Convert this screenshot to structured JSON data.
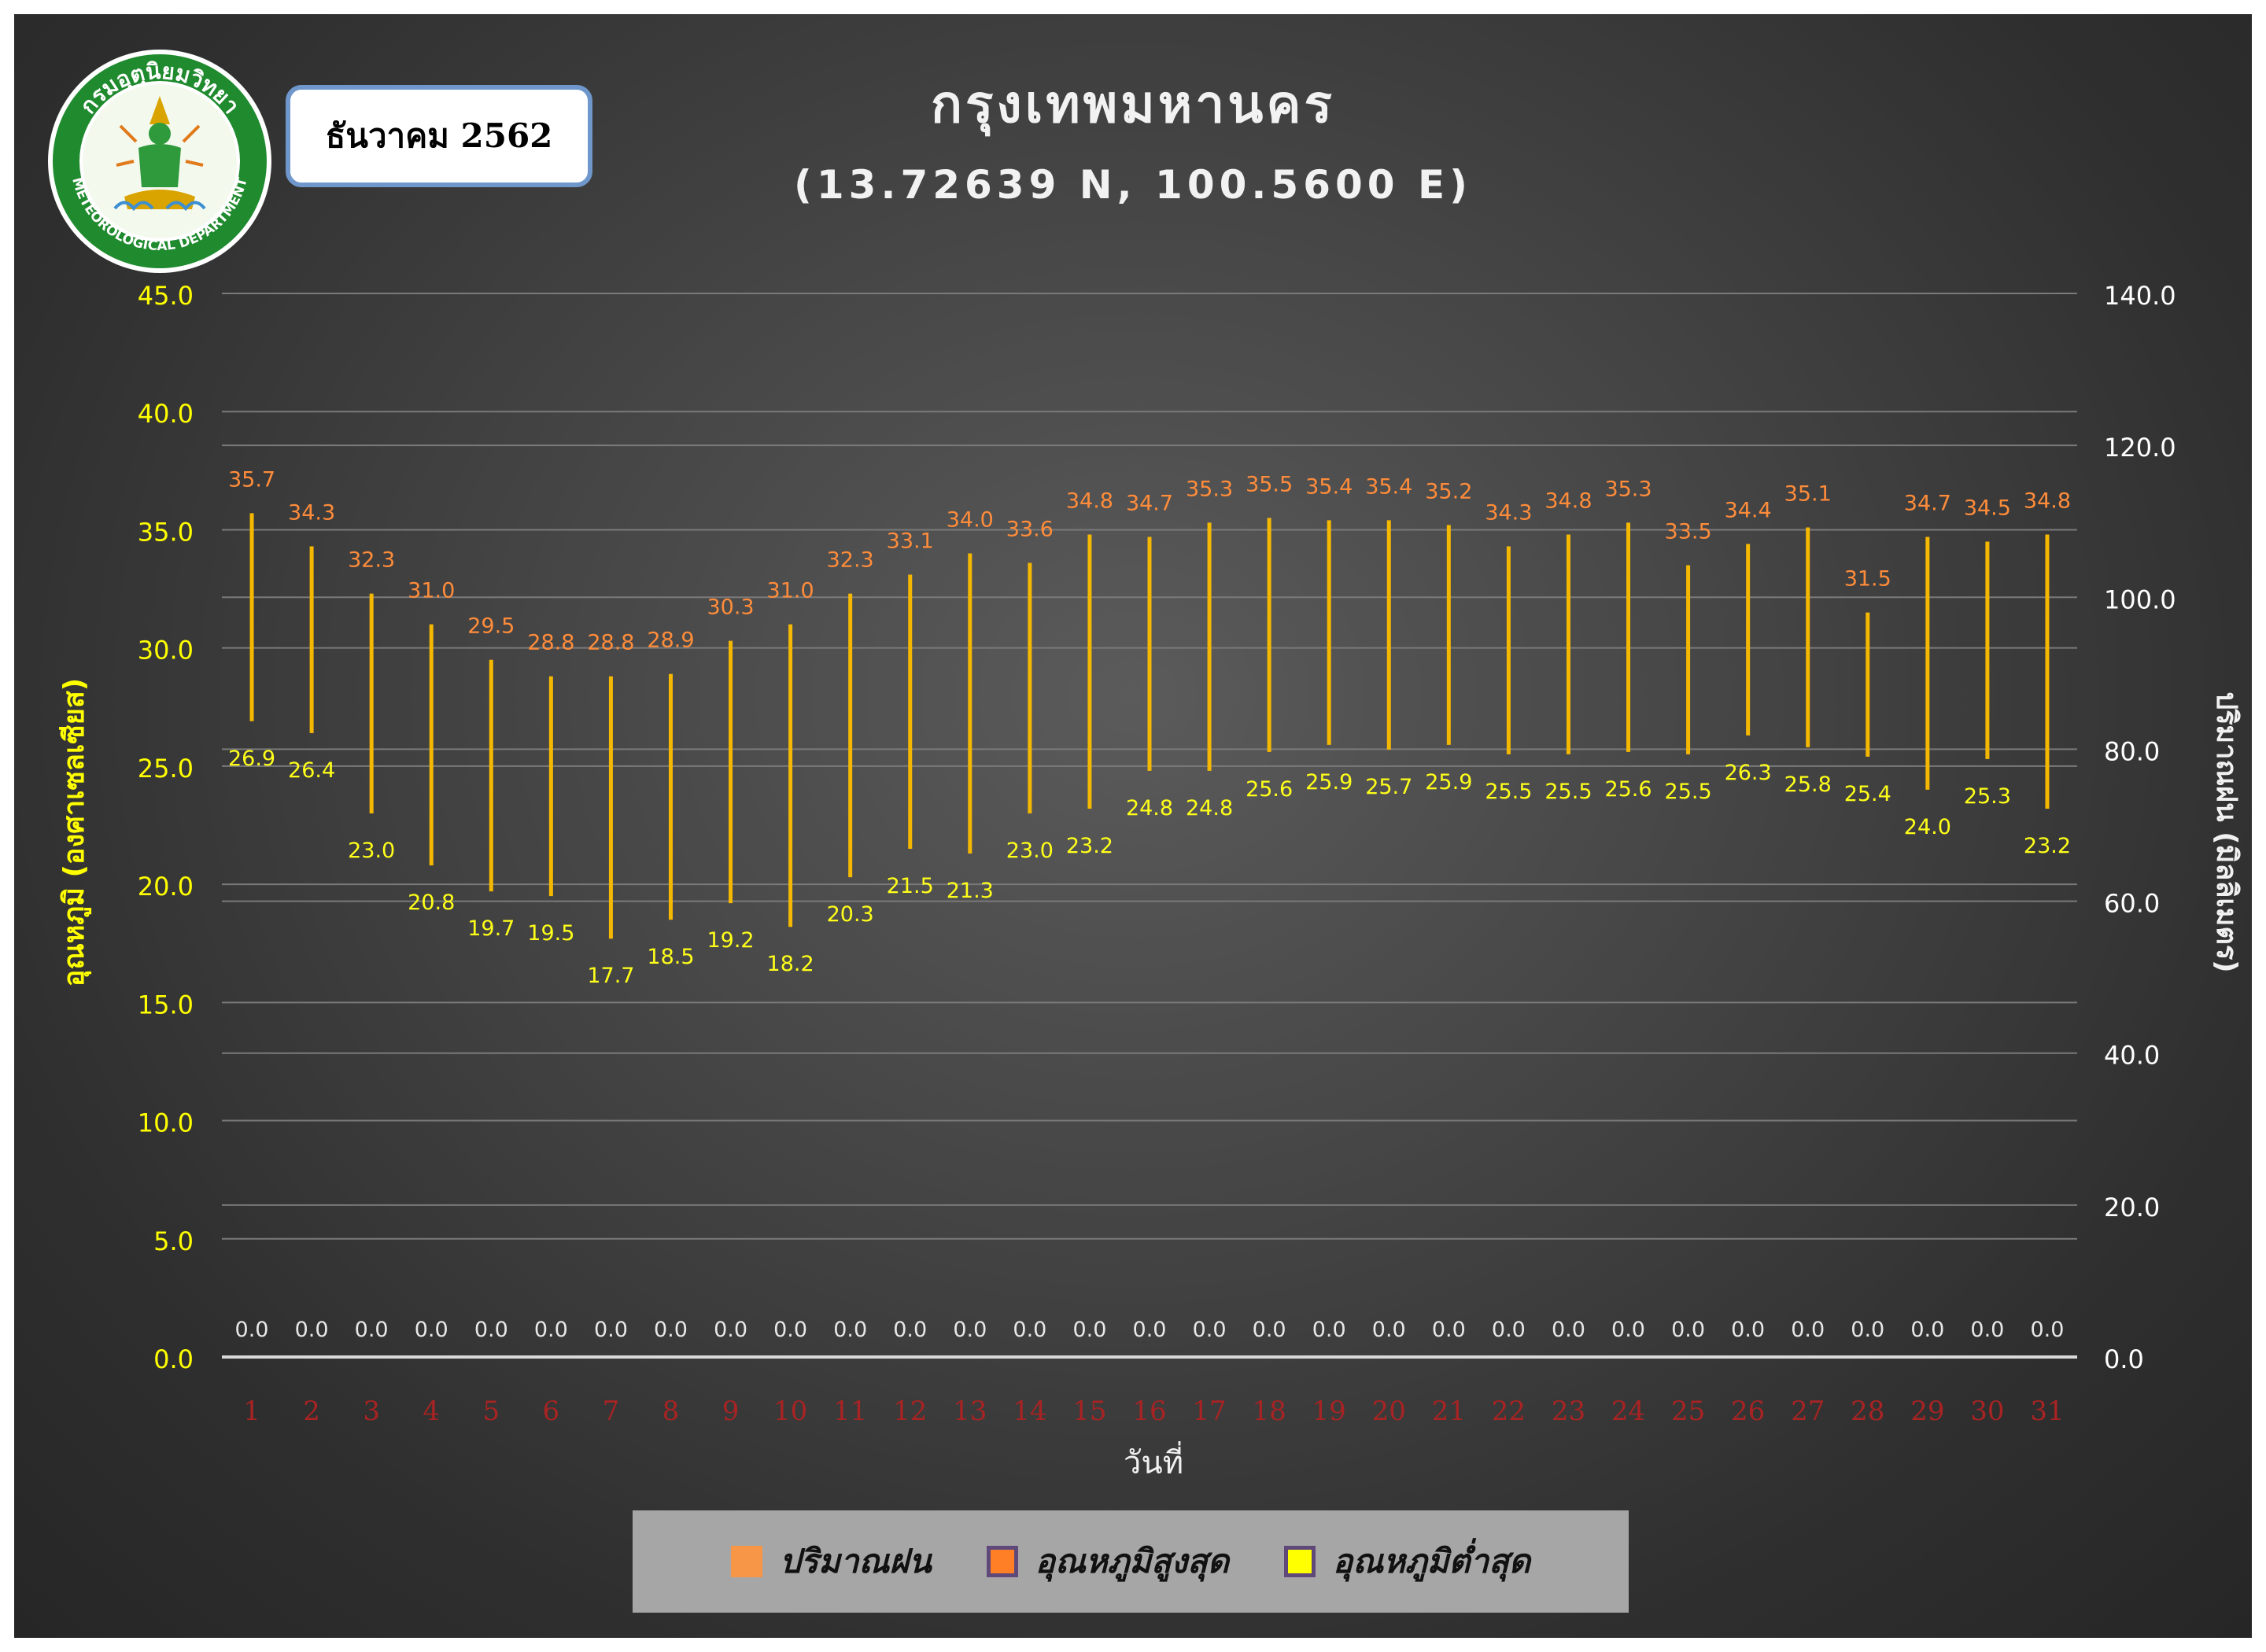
{
  "header": {
    "date_label": "ธันวาคม 2562",
    "title": "กรุงเทพมหานคร",
    "subtitle": "(13.72639 N, 100.5600 E)",
    "logo_text_top": "กรมอุตุนิยมวิทยา",
    "logo_text_bottom": "METEOROLOGICAL DEPARTMENT"
  },
  "legend": {
    "items": [
      {
        "label": "ปริมาณฝน",
        "color": "#f79646",
        "border": "#f79646"
      },
      {
        "label": "อุณหภูมิสูงสุด",
        "color": "#ff7f27",
        "border": "#5f497a"
      },
      {
        "label": "อุณหภูมิต่ำสุด",
        "color": "#ffff00",
        "border": "#5f497a"
      }
    ]
  },
  "chart_data": {
    "type": "bar",
    "xlabel": "วันที่",
    "ylabel_left": "อุณหภูมิ (องศาเซลเซียส)",
    "ylabel_right": "ปริมาณฝน (มิลลิเมตร)",
    "ylim_left": [
      0,
      45
    ],
    "ylim_right": [
      0,
      140
    ],
    "yticks_left": [
      "0.0",
      "5.0",
      "10.0",
      "15.0",
      "20.0",
      "25.0",
      "30.0",
      "35.0",
      "40.0",
      "45.0"
    ],
    "yticks_right": [
      "0.0",
      "20.0",
      "40.0",
      "60.0",
      "80.0",
      "100.0",
      "120.0",
      "140.0"
    ],
    "grid": true,
    "legend_position": "bottom",
    "categories": [
      "1",
      "2",
      "3",
      "4",
      "5",
      "6",
      "7",
      "8",
      "9",
      "10",
      "11",
      "12",
      "13",
      "14",
      "15",
      "16",
      "17",
      "18",
      "19",
      "20",
      "21",
      "22",
      "23",
      "24",
      "25",
      "26",
      "27",
      "28",
      "29",
      "30",
      "31"
    ],
    "series": [
      {
        "name": "ปริมาณฝน",
        "axis": "right",
        "values": [
          0.0,
          0.0,
          0.0,
          0.0,
          0.0,
          0.0,
          0.0,
          0.0,
          0.0,
          0.0,
          0.0,
          0.0,
          0.0,
          0.0,
          0.0,
          0.0,
          0.0,
          0.0,
          0.0,
          0.0,
          0.0,
          0.0,
          0.0,
          0.0,
          0.0,
          0.0,
          0.0,
          0.0,
          0.0,
          0.0,
          0.0
        ]
      },
      {
        "name": "อุณหภูมิสูงสุด",
        "axis": "left",
        "values": [
          35.7,
          34.3,
          32.3,
          31.0,
          29.5,
          28.8,
          28.8,
          28.9,
          30.3,
          31.0,
          32.3,
          33.1,
          34.0,
          33.6,
          34.8,
          34.7,
          35.3,
          35.5,
          35.4,
          35.4,
          35.2,
          34.3,
          34.8,
          35.3,
          33.5,
          34.4,
          35.1,
          31.5,
          34.7,
          34.5,
          34.8
        ]
      },
      {
        "name": "อุณหภูมิต่ำสุด",
        "axis": "left",
        "values": [
          26.9,
          26.4,
          23.0,
          20.8,
          19.7,
          19.5,
          17.7,
          18.5,
          19.2,
          18.2,
          20.3,
          21.5,
          21.3,
          23.0,
          23.2,
          24.8,
          24.8,
          25.6,
          25.9,
          25.7,
          25.9,
          25.5,
          25.5,
          25.6,
          25.5,
          26.3,
          25.8,
          25.4,
          24.0,
          25.3,
          23.2
        ]
      }
    ],
    "colors": {
      "range_line": "#f5b800",
      "max_label": "#ff8c3a",
      "min_label": "#ffff1a",
      "rain_label": "#e8e8e8",
      "left_tick": "#ffff00",
      "right_tick": "#ffffff",
      "x_tick": "#a82323",
      "grid": "#7a7a7a"
    }
  }
}
